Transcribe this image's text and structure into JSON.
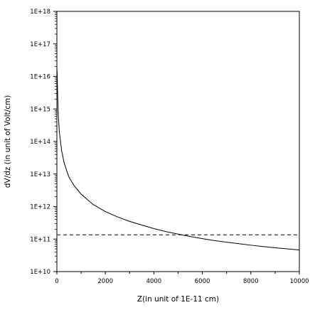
{
  "chart_data": {
    "type": "line",
    "title": "",
    "xlabel": "Z(in unit of 1E-11 cm)",
    "ylabel": "dV/dz (in unit of Volt/cm)",
    "xlim": [
      0,
      10000
    ],
    "ylim": [
      10000000000.0,
      1e+18
    ],
    "yscale": "log",
    "grid": false,
    "x_ticks": [
      0,
      2000,
      4000,
      6000,
      8000,
      10000
    ],
    "x_tick_labels": [
      "0",
      "2000",
      "4000",
      "6000",
      "8000",
      "10000"
    ],
    "y_ticks": [
      10000000000.0,
      100000000000.0,
      1000000000000.0,
      10000000000000.0,
      100000000000000.0,
      1000000000000000.0,
      1e+16,
      1e+17,
      1e+18
    ],
    "y_tick_labels": [
      "1E+10",
      "1E+11",
      "1E+12",
      "1E+13",
      "1E+14",
      "1E+15",
      "1E+16",
      "1E+17",
      "1E+18"
    ],
    "series": [
      {
        "style": "solid",
        "color": "#000000",
        "x": [
          10,
          30,
          60,
          100,
          200,
          300,
          400,
          500,
          700,
          1000,
          1500,
          2000,
          2500,
          3000,
          3500,
          4000,
          4500,
          5000,
          5500,
          6000,
          6500,
          7000,
          7500,
          8000,
          8500,
          9000,
          9500,
          10000
        ],
        "y": [
          1.5e+16,
          3000000000000000.0,
          600000000000000.0,
          200000000000000.0,
          50000000000000.0,
          22000000000000.0,
          13000000000000.0,
          8000000000000.0,
          4500000000000.0,
          2400000000000.0,
          1150000000000.0,
          700000000000.0,
          480000000000.0,
          350000000000.0,
          270000000000.0,
          210000000000.0,
          170000000000.0,
          142000000000.0,
          120000000000.0,
          103000000000.0,
          90000000000.0,
          80000000000.0,
          72000000000.0,
          65000000000.0,
          59000000000.0,
          54000000000.0,
          50000000000.0,
          46000000000.0
        ]
      },
      {
        "style": "dashed",
        "color": "#000000",
        "x": [
          0,
          10000
        ],
        "y": [
          135000000000.0,
          135000000000.0
        ]
      }
    ]
  }
}
